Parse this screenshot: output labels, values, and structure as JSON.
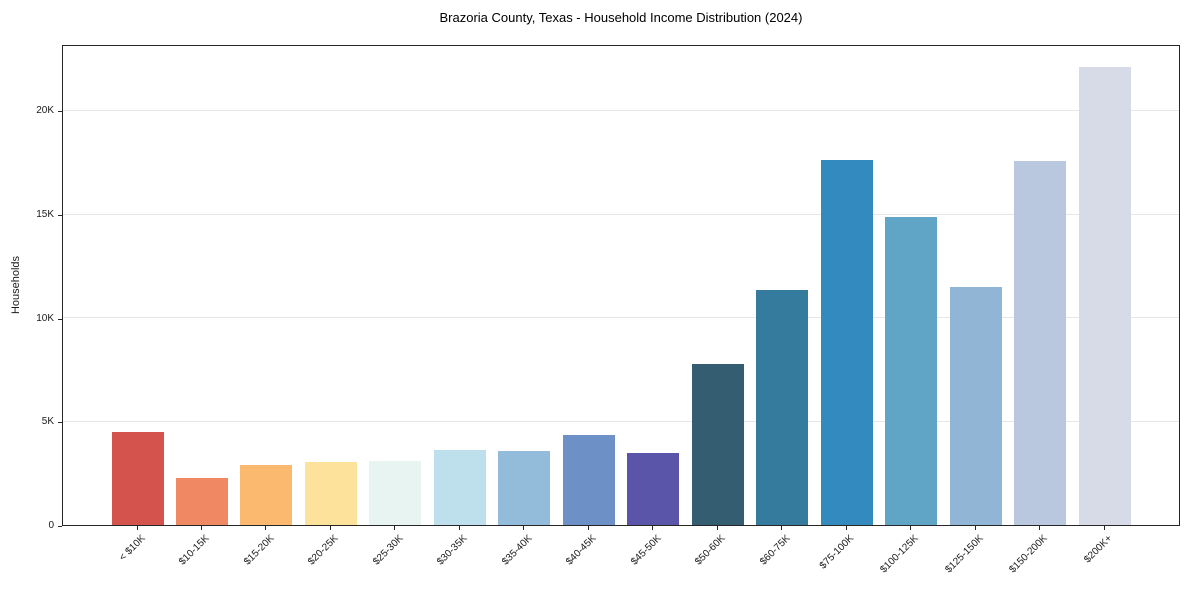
{
  "chart_data": {
    "type": "bar",
    "title": "Brazoria County, Texas - Household Income Distribution (2024)",
    "xlabel": "",
    "ylabel": "Households",
    "categories": [
      "< $10K",
      "$10-15K",
      "$15-20K",
      "$20-25K",
      "$25-30K",
      "$30-35K",
      "$35-40K",
      "$40-45K",
      "$45-50K",
      "$50-60K",
      "$60-75K",
      "$75-100K",
      "$100-125K",
      "$125-150K",
      "$150-200K",
      "$200K+"
    ],
    "values": [
      4500,
      2250,
      2900,
      3060,
      3100,
      3640,
      3580,
      4360,
      3480,
      7780,
      11340,
      17600,
      14840,
      11480,
      17550,
      22110
    ],
    "bar_colors": [
      "#d4544d",
      "#f18864",
      "#fab96e",
      "#fde29c",
      "#e8f4f2",
      "#bee0ec",
      "#92bcda",
      "#6d90c7",
      "#5a55a8",
      "#345d72",
      "#357b9e",
      "#338abf",
      "#60a4c6",
      "#90b5d5",
      "#b9c7df",
      "#d7dae7"
    ],
    "ylim": [
      0,
      23200
    ],
    "yticks": [
      {
        "value": 0,
        "label": "0"
      },
      {
        "value": 5000,
        "label": "5K"
      },
      {
        "value": 10000,
        "label": "10K"
      },
      {
        "value": 15000,
        "label": "15K"
      },
      {
        "value": 20000,
        "label": "20K"
      }
    ],
    "grid": "horizontal",
    "legend": "none",
    "frame": "full-box"
  }
}
